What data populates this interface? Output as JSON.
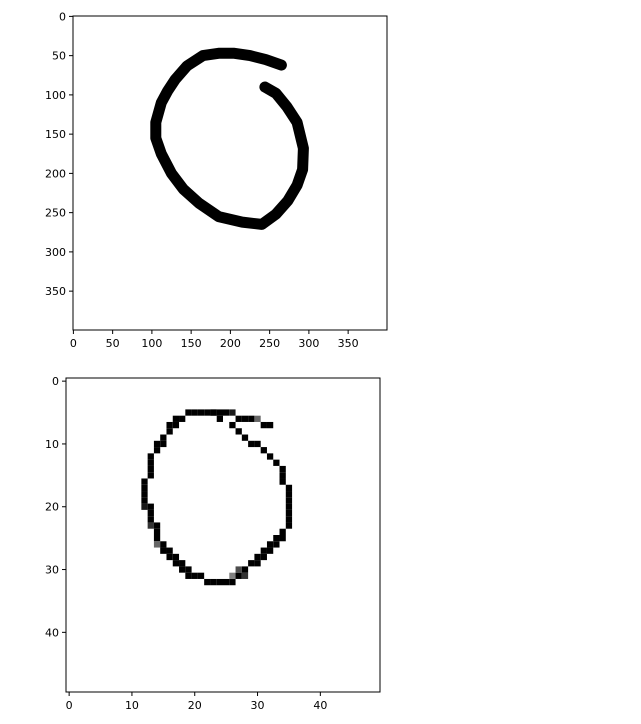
{
  "chart_data": [
    {
      "type": "heatmap",
      "title": "",
      "xlabel": "",
      "ylabel": "",
      "xlim": [
        0,
        400
      ],
      "ylim": [
        400,
        0
      ],
      "xticks": [
        0,
        50,
        100,
        150,
        200,
        250,
        300,
        350
      ],
      "yticks": [
        0,
        50,
        100,
        150,
        200,
        250,
        300,
        350
      ],
      "colormap": "gray",
      "image_content": "hand-drawn digit 6",
      "stroke_points": [
        [
          265,
          62
        ],
        [
          245,
          55
        ],
        [
          225,
          50
        ],
        [
          205,
          47
        ],
        [
          185,
          47
        ],
        [
          165,
          50
        ],
        [
          145,
          63
        ],
        [
          130,
          80
        ],
        [
          120,
          95
        ],
        [
          112,
          110
        ],
        [
          105,
          135
        ],
        [
          105,
          155
        ],
        [
          112,
          175
        ],
        [
          125,
          200
        ],
        [
          140,
          220
        ],
        [
          160,
          238
        ],
        [
          185,
          255
        ],
        [
          215,
          262
        ],
        [
          240,
          265
        ],
        [
          258,
          252
        ],
        [
          273,
          235
        ],
        [
          285,
          215
        ],
        [
          292,
          195
        ],
        [
          293,
          168
        ],
        [
          285,
          135
        ],
        [
          272,
          115
        ],
        [
          258,
          98
        ],
        [
          244,
          90
        ]
      ]
    },
    {
      "type": "heatmap",
      "title": "",
      "xlabel": "",
      "ylabel": "",
      "xlim": [
        0,
        50
      ],
      "ylim": [
        50,
        0
      ],
      "xticks": [
        0,
        10,
        20,
        30,
        40
      ],
      "yticks": [
        0,
        10,
        20,
        30,
        40
      ],
      "colormap": "gray",
      "image_content": "downsampled hand-drawn digit 6",
      "pixels": [
        [
          6,
          18,
          1.0
        ],
        [
          5,
          19,
          1.0
        ],
        [
          5,
          20,
          1.0
        ],
        [
          5,
          21,
          1.0
        ],
        [
          5,
          22,
          1.0
        ],
        [
          5,
          23,
          1.0
        ],
        [
          5,
          24,
          1.0
        ],
        [
          5,
          25,
          1.0
        ],
        [
          5,
          26,
          0.9
        ],
        [
          6,
          27,
          1.0
        ],
        [
          6,
          28,
          1.0
        ],
        [
          6,
          29,
          1.0
        ],
        [
          6,
          30,
          0.6
        ],
        [
          7,
          31,
          1.0
        ],
        [
          7,
          32,
          1.0
        ],
        [
          6,
          17,
          1.0
        ],
        [
          7,
          17,
          1.0
        ],
        [
          7,
          16,
          1.0
        ],
        [
          8,
          16,
          1.0
        ],
        [
          9,
          15,
          1.0
        ],
        [
          10,
          15,
          1.0
        ],
        [
          10,
          14,
          1.0
        ],
        [
          11,
          14,
          1.0
        ],
        [
          12,
          13,
          1.0
        ],
        [
          13,
          13,
          1.0
        ],
        [
          14,
          13,
          1.0
        ],
        [
          15,
          13,
          1.0
        ],
        [
          16,
          12,
          1.0
        ],
        [
          17,
          12,
          1.0
        ],
        [
          18,
          12,
          1.0
        ],
        [
          19,
          12,
          1.0
        ],
        [
          20,
          12,
          0.9
        ],
        [
          20,
          13,
          1.0
        ],
        [
          21,
          13,
          1.0
        ],
        [
          22,
          13,
          1.0
        ],
        [
          23,
          13,
          0.8
        ],
        [
          23,
          14,
          1.0
        ],
        [
          24,
          14,
          1.0
        ],
        [
          25,
          14,
          1.0
        ],
        [
          26,
          14,
          0.6
        ],
        [
          26,
          15,
          1.0
        ],
        [
          27,
          15,
          1.0
        ],
        [
          27,
          16,
          1.0
        ],
        [
          28,
          16,
          1.0
        ],
        [
          28,
          17,
          1.0
        ],
        [
          29,
          17,
          1.0
        ],
        [
          29,
          18,
          1.0
        ],
        [
          30,
          18,
          1.0
        ],
        [
          30,
          19,
          1.0
        ],
        [
          31,
          19,
          1.0
        ],
        [
          31,
          20,
          1.0
        ],
        [
          31,
          21,
          1.0
        ],
        [
          32,
          22,
          1.0
        ],
        [
          32,
          23,
          1.0
        ],
        [
          32,
          24,
          1.0
        ],
        [
          32,
          25,
          1.0
        ],
        [
          32,
          26,
          1.0
        ],
        [
          31,
          26,
          0.5
        ],
        [
          31,
          27,
          1.0
        ],
        [
          31,
          28,
          0.8
        ],
        [
          30,
          27,
          0.7
        ],
        [
          30,
          28,
          1.0
        ],
        [
          29,
          29,
          1.0
        ],
        [
          29,
          30,
          1.0
        ],
        [
          28,
          30,
          1.0
        ],
        [
          28,
          31,
          1.0
        ],
        [
          27,
          31,
          1.0
        ],
        [
          27,
          32,
          1.0
        ],
        [
          26,
          32,
          1.0
        ],
        [
          26,
          33,
          1.0
        ],
        [
          25,
          33,
          1.0
        ],
        [
          25,
          34,
          1.0
        ],
        [
          24,
          34,
          1.0
        ],
        [
          23,
          35,
          1.0
        ],
        [
          22,
          35,
          1.0
        ],
        [
          21,
          35,
          1.0
        ],
        [
          20,
          35,
          1.0
        ],
        [
          19,
          35,
          1.0
        ],
        [
          18,
          35,
          1.0
        ],
        [
          17,
          35,
          1.0
        ],
        [
          16,
          34,
          1.0
        ],
        [
          15,
          34,
          1.0
        ],
        [
          14,
          34,
          1.0
        ],
        [
          13,
          33,
          1.0
        ],
        [
          12,
          32,
          1.0
        ],
        [
          11,
          31,
          1.0
        ],
        [
          10,
          30,
          1.0
        ],
        [
          10,
          29,
          1.0
        ],
        [
          9,
          28,
          1.0
        ],
        [
          8,
          27,
          1.0
        ],
        [
          7,
          26,
          1.0
        ],
        [
          6,
          24,
          1.0
        ],
        [
          5,
          23,
          1.0
        ]
      ]
    }
  ]
}
